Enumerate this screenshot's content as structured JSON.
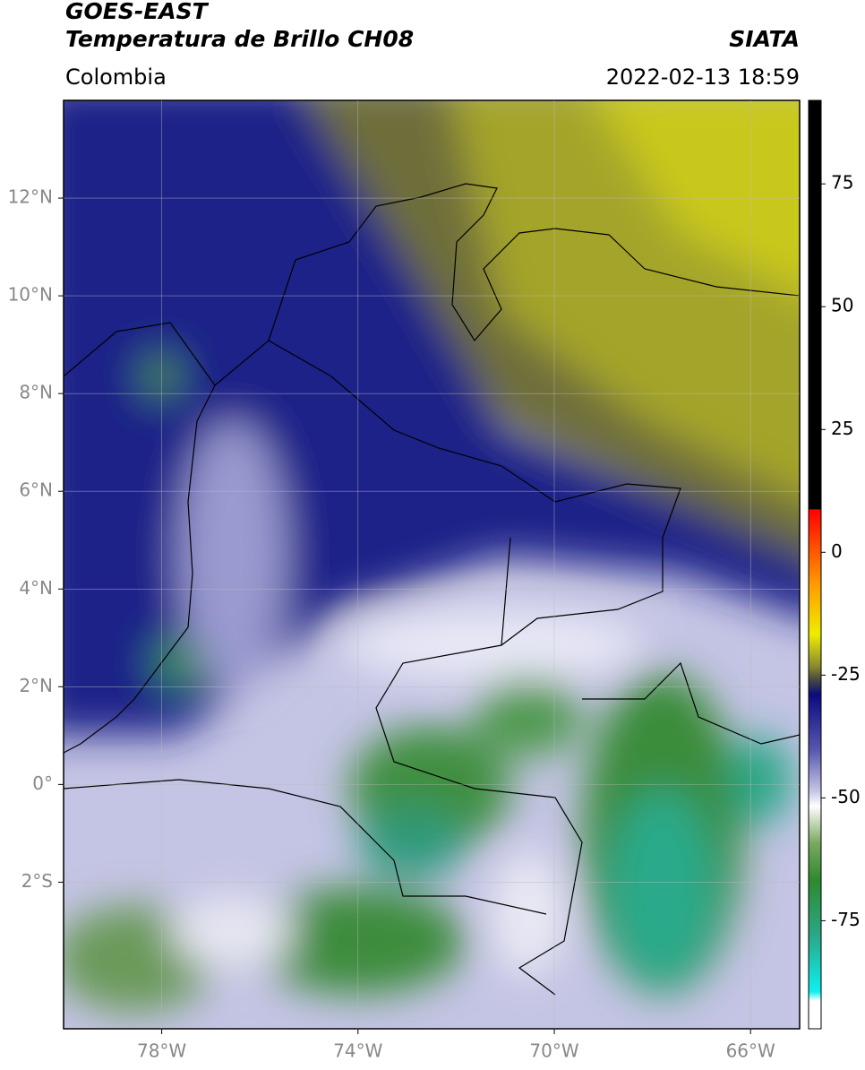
{
  "header": {
    "satellite": "GOES-EAST",
    "product": "Temperatura de Brillo CH08",
    "region": "Colombia",
    "source": "SIATA",
    "datetime": "2022-02-13 18:59"
  },
  "map": {
    "lat_range": [
      -5,
      14
    ],
    "lon_range": [
      -80,
      -65
    ],
    "lat_ticks": [
      {
        "value": 12,
        "label": "12°N"
      },
      {
        "value": 10,
        "label": "10°N"
      },
      {
        "value": 8,
        "label": "8°N"
      },
      {
        "value": 6,
        "label": "6°N"
      },
      {
        "value": 4,
        "label": "4°N"
      },
      {
        "value": 2,
        "label": "2°N"
      },
      {
        "value": 0,
        "label": "0°"
      },
      {
        "value": -2,
        "label": "2°S"
      }
    ],
    "lon_ticks": [
      {
        "value": -78,
        "label": "78°W"
      },
      {
        "value": -74,
        "label": "74°W"
      },
      {
        "value": -70,
        "label": "70°W"
      },
      {
        "value": -66,
        "label": "66°W"
      }
    ]
  },
  "colorbar": {
    "range": [
      -97,
      92
    ],
    "ticks": [
      75,
      50,
      25,
      0,
      -25,
      -50,
      -75
    ]
  }
}
